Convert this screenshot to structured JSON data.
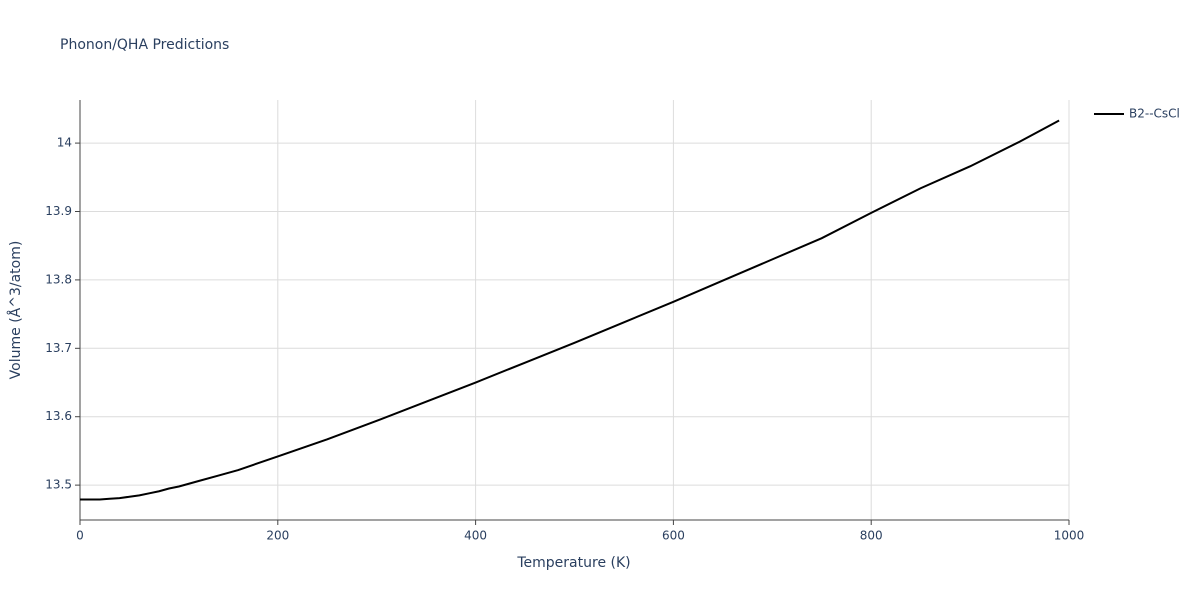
{
  "chart_data": {
    "type": "line",
    "title": "Phonon/QHA Predictions",
    "x_label": "Temperature (K)",
    "y_label": "Volume (Å^3/atom)",
    "x": [
      0,
      10,
      20,
      30,
      40,
      50,
      60,
      70,
      80,
      90,
      100,
      120,
      140,
      160,
      180,
      200,
      250,
      300,
      350,
      400,
      450,
      500,
      550,
      600,
      650,
      700,
      750,
      800,
      850,
      900,
      950,
      990
    ],
    "series": [
      {
        "name": "B2--CsCl",
        "color": "#000000",
        "values": [
          13.479,
          13.479,
          13.479,
          13.48,
          13.481,
          13.483,
          13.485,
          13.488,
          13.491,
          13.495,
          13.498,
          13.506,
          13.514,
          13.522,
          13.532,
          13.542,
          13.567,
          13.594,
          13.622,
          13.65,
          13.679,
          13.708,
          13.738,
          13.768,
          13.799,
          13.83,
          13.861,
          13.898,
          13.934,
          13.966,
          14.002,
          14.033
        ]
      }
    ],
    "xlim": [
      0,
      1000
    ],
    "xticks": [
      0,
      200,
      400,
      600,
      800,
      1000
    ],
    "ylim": [
      13.449,
      14.063
    ],
    "yticks": [
      13.5,
      13.6,
      13.7,
      13.8,
      13.9,
      14
    ],
    "grid": true,
    "legend": "right"
  }
}
